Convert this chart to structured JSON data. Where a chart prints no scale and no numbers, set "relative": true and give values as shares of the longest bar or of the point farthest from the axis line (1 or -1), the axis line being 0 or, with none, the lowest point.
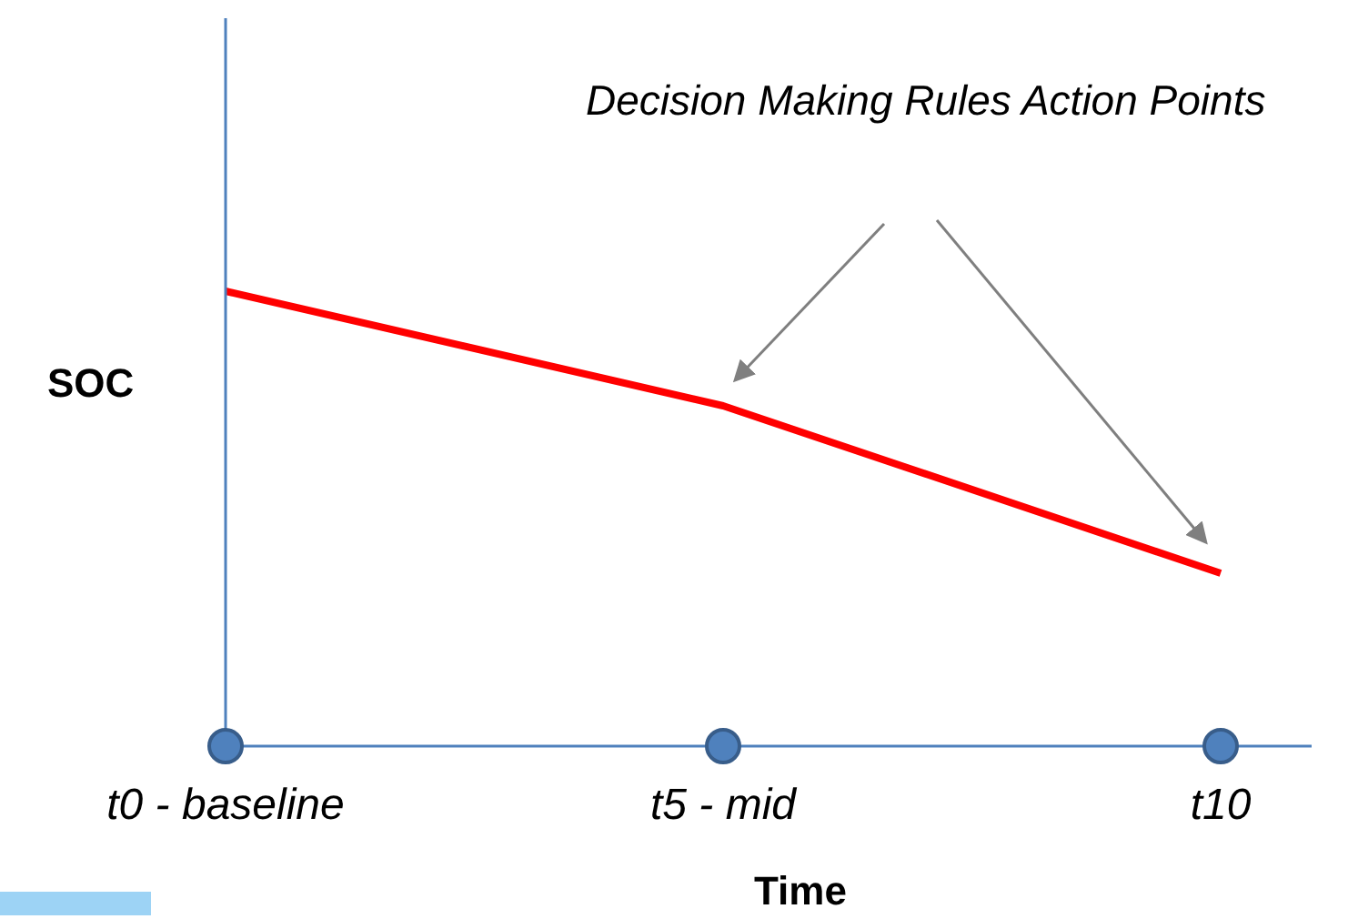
{
  "chart_data": {
    "type": "line",
    "relative": true,
    "categories": [
      "t0 - baseline",
      "t5 - mid",
      "t10"
    ],
    "series": [
      {
        "color": "#ff0000",
        "values": [
          1,
          0.748,
          0.38
        ]
      }
    ],
    "xlabel": "Time",
    "ylabel": "SOC",
    "marker": "none",
    "grid": false,
    "legend": false,
    "annotations": [
      "Decision Making Rules Action Points"
    ]
  }
}
